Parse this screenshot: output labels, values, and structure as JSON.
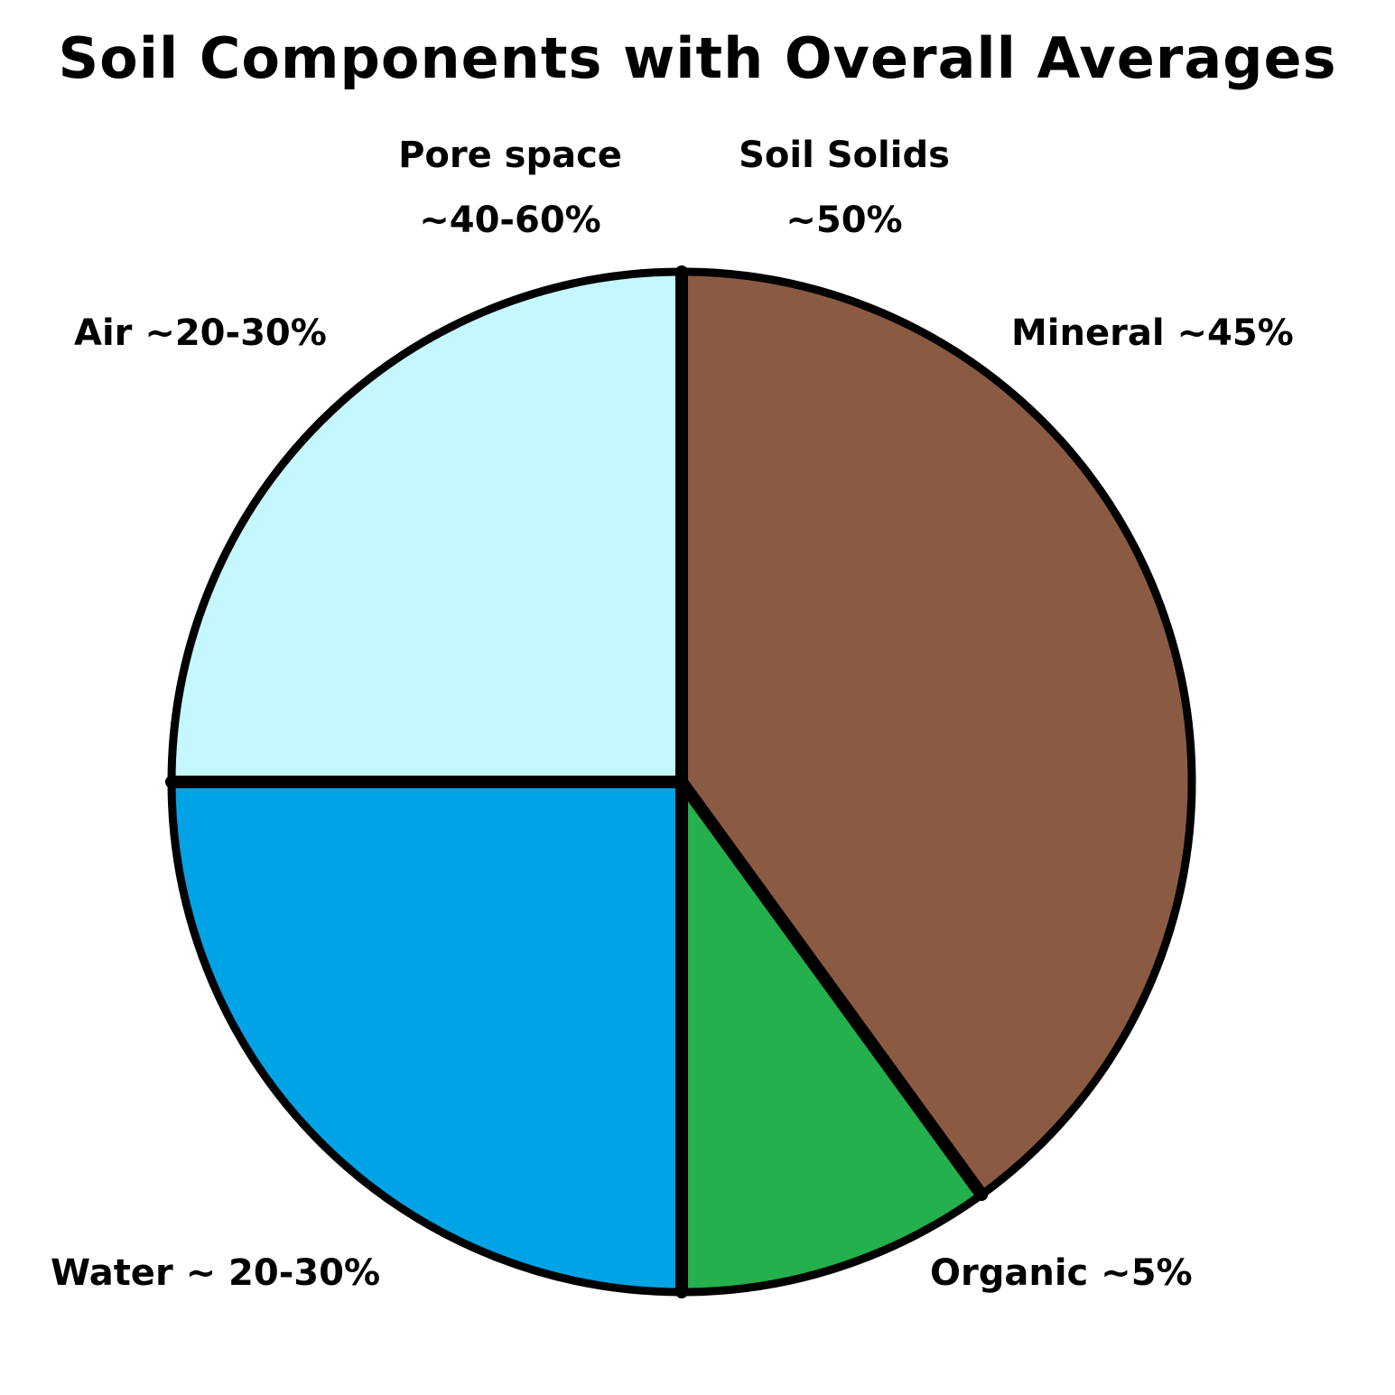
{
  "title": "Soil Components with Overall Averages",
  "groups": {
    "pore_space": {
      "name": "Pore space",
      "value": "~40-60%"
    },
    "soil_solids": {
      "name": "Soil Solids",
      "value": "~50%"
    }
  },
  "chart_data": {
    "type": "pie",
    "title": "Soil Components with Overall Averages",
    "start_angle_deg": 0,
    "direction": "clockwise_from_top",
    "slices": [
      {
        "name": "Mineral",
        "label": "Mineral ~45%",
        "value": 40,
        "color": "#8B5A43"
      },
      {
        "name": "Organic",
        "label": "Organic ~5%",
        "value": 10,
        "color": "#24B04C"
      },
      {
        "name": "Water",
        "label": "Water ~ 20-30%",
        "value": 25,
        "color": "#00A3E6"
      },
      {
        "name": "Air",
        "label": "Air ~20-30%",
        "value": 25,
        "color": "#C4F7FF"
      }
    ],
    "groups": [
      {
        "name": "Pore space",
        "label": "~40-60%",
        "members": [
          "Water",
          "Air"
        ]
      },
      {
        "name": "Soil Solids",
        "label": "~50%",
        "members": [
          "Mineral",
          "Organic"
        ]
      }
    ],
    "outline_color": "#000000",
    "legend": "none"
  }
}
